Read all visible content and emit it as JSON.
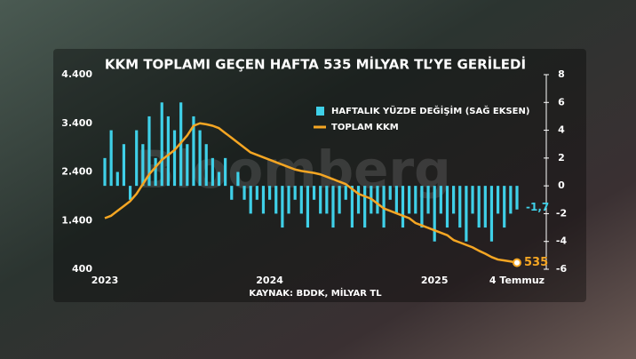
{
  "chart_data": {
    "type": "combo",
    "title": "KKM TOPLAMI GEÇEN HAFTA 535 MİLYAR TL’YE GERİLEDİ",
    "source": "KAYNAK: BDDK, MİLYAR TL",
    "watermark": "Bloomberg",
    "categories": [
      "2023",
      null,
      null,
      null,
      null,
      null,
      null,
      null,
      null,
      null,
      null,
      null,
      null,
      null,
      null,
      null,
      null,
      null,
      null,
      null,
      null,
      null,
      null,
      null,
      null,
      null,
      "2024",
      null,
      null,
      null,
      null,
      null,
      null,
      null,
      null,
      null,
      null,
      null,
      null,
      null,
      null,
      null,
      null,
      null,
      null,
      null,
      null,
      null,
      null,
      null,
      null,
      null,
      "2025",
      null,
      null,
      null,
      null,
      null,
      null,
      null,
      null,
      null,
      null,
      null,
      null,
      "4 Temmuz"
    ],
    "series": [
      {
        "name": "HAFTALIK YÜZDE DEĞİŞİM (SAĞ EKSEN)",
        "type": "bar",
        "axis": "y2",
        "color": "#3fd0e8",
        "values": [
          2,
          4,
          1,
          3,
          -1,
          4,
          3,
          5,
          2,
          6,
          5,
          4,
          6,
          3,
          5,
          4,
          3,
          2,
          1,
          2,
          -1,
          1,
          -1,
          -2,
          -1,
          -2,
          -1,
          -2,
          -3,
          -2,
          -1,
          -2,
          -3,
          -1,
          -2,
          -2,
          -3,
          -2,
          -1,
          -3,
          -2,
          -3,
          -2,
          -2,
          -3,
          -1,
          -2,
          -3,
          -2,
          -2,
          -3,
          -2,
          -4,
          -2,
          -3,
          -2,
          -3,
          -4,
          -2,
          -3,
          -3,
          -4,
          -2,
          -3,
          -2,
          -1.7
        ],
        "value_labels": [
          null,
          null,
          null,
          null,
          null,
          null,
          null,
          null,
          null,
          null,
          null,
          null,
          null,
          null,
          null,
          null,
          null,
          null,
          null,
          null,
          null,
          null,
          null,
          null,
          null,
          null,
          null,
          null,
          null,
          null,
          null,
          null,
          null,
          null,
          null,
          null,
          null,
          null,
          null,
          null,
          null,
          null,
          null,
          null,
          null,
          null,
          null,
          null,
          null,
          null,
          null,
          null,
          null,
          null,
          null,
          null,
          null,
          null,
          null,
          null,
          null,
          null,
          null,
          null,
          null,
          "-1,7"
        ]
      },
      {
        "name": "TOPLAM KKM",
        "type": "line",
        "color": "#f5a623",
        "values": [
          1450,
          1500,
          1600,
          1700,
          1800,
          1950,
          2150,
          2350,
          2500,
          2650,
          2750,
          2850,
          3000,
          3150,
          3350,
          3400,
          3380,
          3350,
          3300,
          3200,
          3100,
          3000,
          2900,
          2800,
          2750,
          2700,
          2650,
          2600,
          2550,
          2500,
          2450,
          2420,
          2400,
          2380,
          2350,
          2300,
          2250,
          2200,
          2150,
          2050,
          1950,
          1900,
          1850,
          1750,
          1650,
          1600,
          1550,
          1500,
          1450,
          1350,
          1300,
          1250,
          1200,
          1150,
          1100,
          1000,
          950,
          900,
          850,
          780,
          720,
          650,
          600,
          580,
          560,
          535
        ]
      }
    ],
    "ylim": [
      400,
      4400
    ],
    "yticks": [
      400,
      {
        "value": 1400,
        "label": "1.400"
      },
      {
        "value": 2400,
        "label": "2.400"
      },
      {
        "value": 3400,
        "label": "3.400"
      },
      {
        "value": 4400,
        "label": "4.400"
      }
    ],
    "y2lim": [
      -6,
      8
    ],
    "y2ticks": [
      -6,
      -4,
      -2,
      0,
      2,
      4,
      6,
      8
    ]
  }
}
